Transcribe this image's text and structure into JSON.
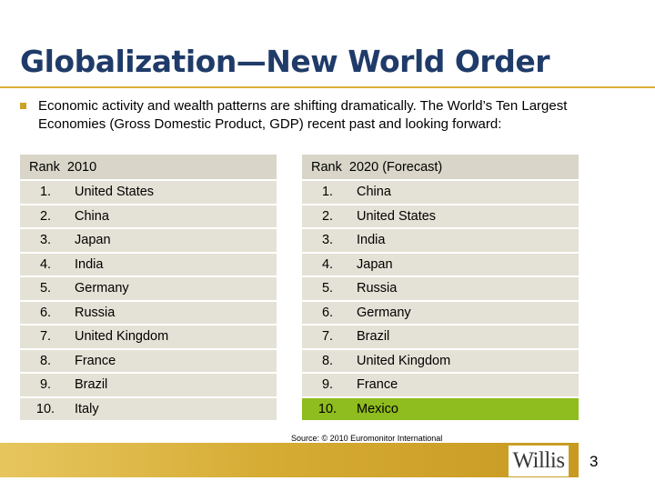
{
  "title": "Globalization—New World Order",
  "bullet": "Economic activity and wealth patterns are shifting dramatically. The World’s Ten Largest Economies (Gross Domestic Product, GDP) recent past and looking forward:",
  "table": {
    "left_header": "Rank  2010",
    "right_header": "Rank  2020 (Forecast)",
    "highlight_color": "#8fbc1e",
    "rows": [
      {
        "rank_2010": "1.",
        "country_2010": "United States",
        "rank_2020": "1.",
        "country_2020": "China"
      },
      {
        "rank_2010": "2.",
        "country_2010": "China",
        "rank_2020": "2.",
        "country_2020": "United States"
      },
      {
        "rank_2010": "3.",
        "country_2010": "Japan",
        "rank_2020": "3.",
        "country_2020": "India"
      },
      {
        "rank_2010": "4.",
        "country_2010": "India",
        "rank_2020": "4.",
        "country_2020": "Japan"
      },
      {
        "rank_2010": "5.",
        "country_2010": "Germany",
        "rank_2020": "5.",
        "country_2020": "Russia"
      },
      {
        "rank_2010": "6.",
        "country_2010": "Russia",
        "rank_2020": "6.",
        "country_2020": "Germany"
      },
      {
        "rank_2010": "7.",
        "country_2010": "United Kingdom",
        "rank_2020": "7.",
        "country_2020": "Brazil"
      },
      {
        "rank_2010": "8.",
        "country_2010": "France",
        "rank_2020": "8.",
        "country_2020": "United Kingdom"
      },
      {
        "rank_2010": "9.",
        "country_2010": "Brazil",
        "rank_2020": "9.",
        "country_2020": "France"
      },
      {
        "rank_2010": "10.",
        "country_2010": "Italy",
        "rank_2020": "10.",
        "country_2020": "Mexico"
      }
    ]
  },
  "source": "Source: © 2010 Euromonitor International",
  "logo": "Willis",
  "page_number": "3"
}
